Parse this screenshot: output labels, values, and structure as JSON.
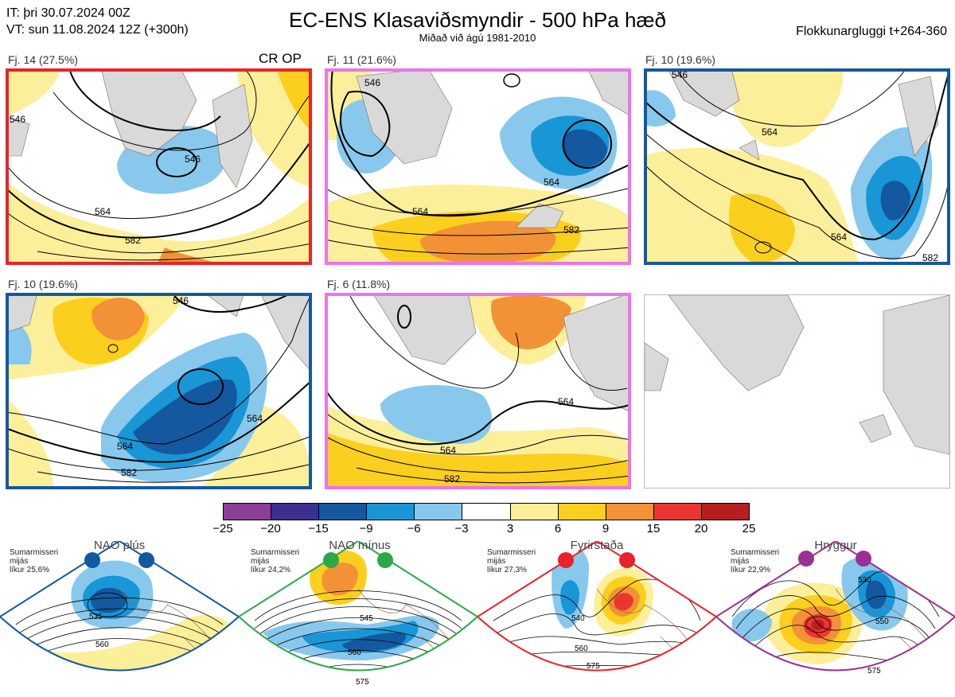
{
  "header": {
    "it_line": "IT: þri 30.07.2024 00Z",
    "vt_line": "VT: sun 11.08.2024 12Z  (+300h)",
    "title": "EC-ENS Klasaviðsmyndir - 500 hPa hæð",
    "subtitle": "Miðað við ágú 1981-2010",
    "window": "Flokkunargluggi t+264-360"
  },
  "panels": [
    {
      "label": "Fj. 14 (27.5%)",
      "frame_color": "#e8232a",
      "extra": "CR OP",
      "contours": [
        "546",
        "564",
        "582",
        "546"
      ]
    },
    {
      "label": "Fj. 11 (21.6%)",
      "frame_color": "#ee72ee",
      "contours": [
        "546",
        "564",
        "582",
        "564"
      ]
    },
    {
      "label": "Fj. 10 (19.6%)",
      "frame_color": "#1458a0",
      "contours": [
        "546",
        "564",
        "582",
        "564"
      ]
    },
    {
      "label": "Fj. 10 (19.6%)",
      "frame_color": "#1458a0",
      "contours": [
        "546",
        "564",
        "582",
        "564"
      ]
    },
    {
      "label": "Fj. 6 (11.8%)",
      "frame_color": "#ee72ee",
      "contours": [
        "564",
        "582",
        "564"
      ]
    }
  ],
  "colorbar": {
    "colors": [
      "#8b3f99",
      "#3d2f8f",
      "#1458a0",
      "#1896d6",
      "#88c8ec",
      "#ffffff",
      "#fbef9a",
      "#fbcf1e",
      "#f39137",
      "#ec3531",
      "#b81d22"
    ],
    "labels": [
      "−25",
      "−20",
      "−15",
      "−9",
      "−6",
      "−3",
      "3",
      "6",
      "9",
      "15",
      "20",
      "25"
    ]
  },
  "regimes": [
    {
      "title": "NAO plús",
      "info": [
        "Sumarmisseri",
        "mijás",
        "líkur 25,6%"
      ],
      "color": "#1458a0",
      "contours": [
        "535",
        "560"
      ]
    },
    {
      "title": "NAO mínus",
      "info": [
        "Sumarmisseri",
        "mijás",
        "líkur 24,2%"
      ],
      "color": "#2ba84a",
      "contours": [
        "545",
        "560",
        "575"
      ]
    },
    {
      "title": "Fyrirstaða",
      "info": [
        "Sumarmisseri",
        "mijás",
        "líkur 27,3%"
      ],
      "color": "#e8232a",
      "contours": [
        "540",
        "560",
        "575"
      ]
    },
    {
      "title": "Hryggur",
      "info": [
        "Sumarmisseri",
        "mijás",
        "líkur 22,9%"
      ],
      "color": "#9a2f95",
      "contours": [
        "530",
        "550",
        "575"
      ]
    }
  ]
}
